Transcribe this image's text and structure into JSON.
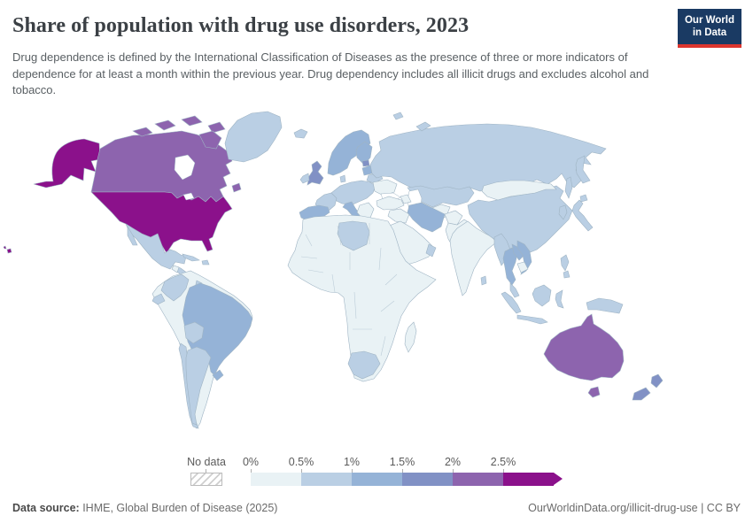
{
  "header": {
    "title": "Share of population with drug use disorders, 2023",
    "subtitle": "Drug dependence is defined by the International Classification of Diseases as the presence of three or more indicators of dependence for at least a month within the previous year. Drug dependency includes all illicit drugs and excludes alcohol and tobacco.",
    "logo": {
      "line1": "Our World",
      "line2": "in Data",
      "bg": "#1a3a63",
      "accent": "#dc352e"
    }
  },
  "legend": {
    "no_data_label": "No data",
    "ticks": [
      "0%",
      "0.5%",
      "1%",
      "1.5%",
      "2%",
      "2.5%"
    ],
    "colors": [
      "#e9f2f5",
      "#bacfe4",
      "#95b3d7",
      "#8191c5",
      "#8d64ae",
      "#8b118b"
    ],
    "bucket_ranges": [
      "0-0.5%",
      "0.5-1%",
      "1-1.5%",
      "1.5-2%",
      "2-2.5%",
      ">2.5%"
    ]
  },
  "map": {
    "ocean_color": "#ffffff",
    "border_color": "#9fb4c4",
    "region_values": {
      "united-states": 5,
      "canada": 4,
      "greenland": 1,
      "mexico": 1,
      "guatemala": 0,
      "central-america": 1,
      "cuba": 1,
      "hispaniola": 1,
      "south-america-other": 0,
      "colombia": 1,
      "ecuador": 1,
      "guyana": 1,
      "brazil": 2,
      "bolivia": 1,
      "chile": 1,
      "argentina": 1,
      "uruguay": 2,
      "iceland": 1,
      "united-kingdom": 3,
      "ireland": 1,
      "norway-sweden": 2,
      "finland": 2,
      "denmark": 1,
      "france": 1,
      "spain": 2,
      "central-europe": 1,
      "italy": 2,
      "balkans": 0,
      "greece": 0,
      "ukraine": 0,
      "belarus": 1,
      "baltics": 2,
      "estonia": 3,
      "russia": 1,
      "svalbard": 1,
      "kazakhstan": 1,
      "central-asia": 0,
      "caucasus": 0,
      "turkey": 0,
      "iraq-syria": 0,
      "iran": 2,
      "afghanistan": 0,
      "pakistan": 0,
      "saudi-arabia": 0,
      "oman-uae": 1,
      "india": 0,
      "sri-lanka": 1,
      "myanmar": 1,
      "thailand": 2,
      "laos": 2,
      "vietnam": 2,
      "cambodia": 0,
      "malaysia": 1,
      "indonesia": 1,
      "philippines": 1,
      "papua-new-guinea": 1,
      "china": 1,
      "mongolia": 0,
      "south-korea": 1,
      "japan": 1,
      "africa-other": 0,
      "libya": 1,
      "south-africa": 1,
      "madagascar": 0,
      "australia": 4,
      "new-zealand": 3
    }
  },
  "footer": {
    "source_label": "Data source:",
    "source_text": " IHME, Global Burden of Disease (2025)",
    "right_text": "OurWorldinData.org/illicit-drug-use | CC BY"
  }
}
